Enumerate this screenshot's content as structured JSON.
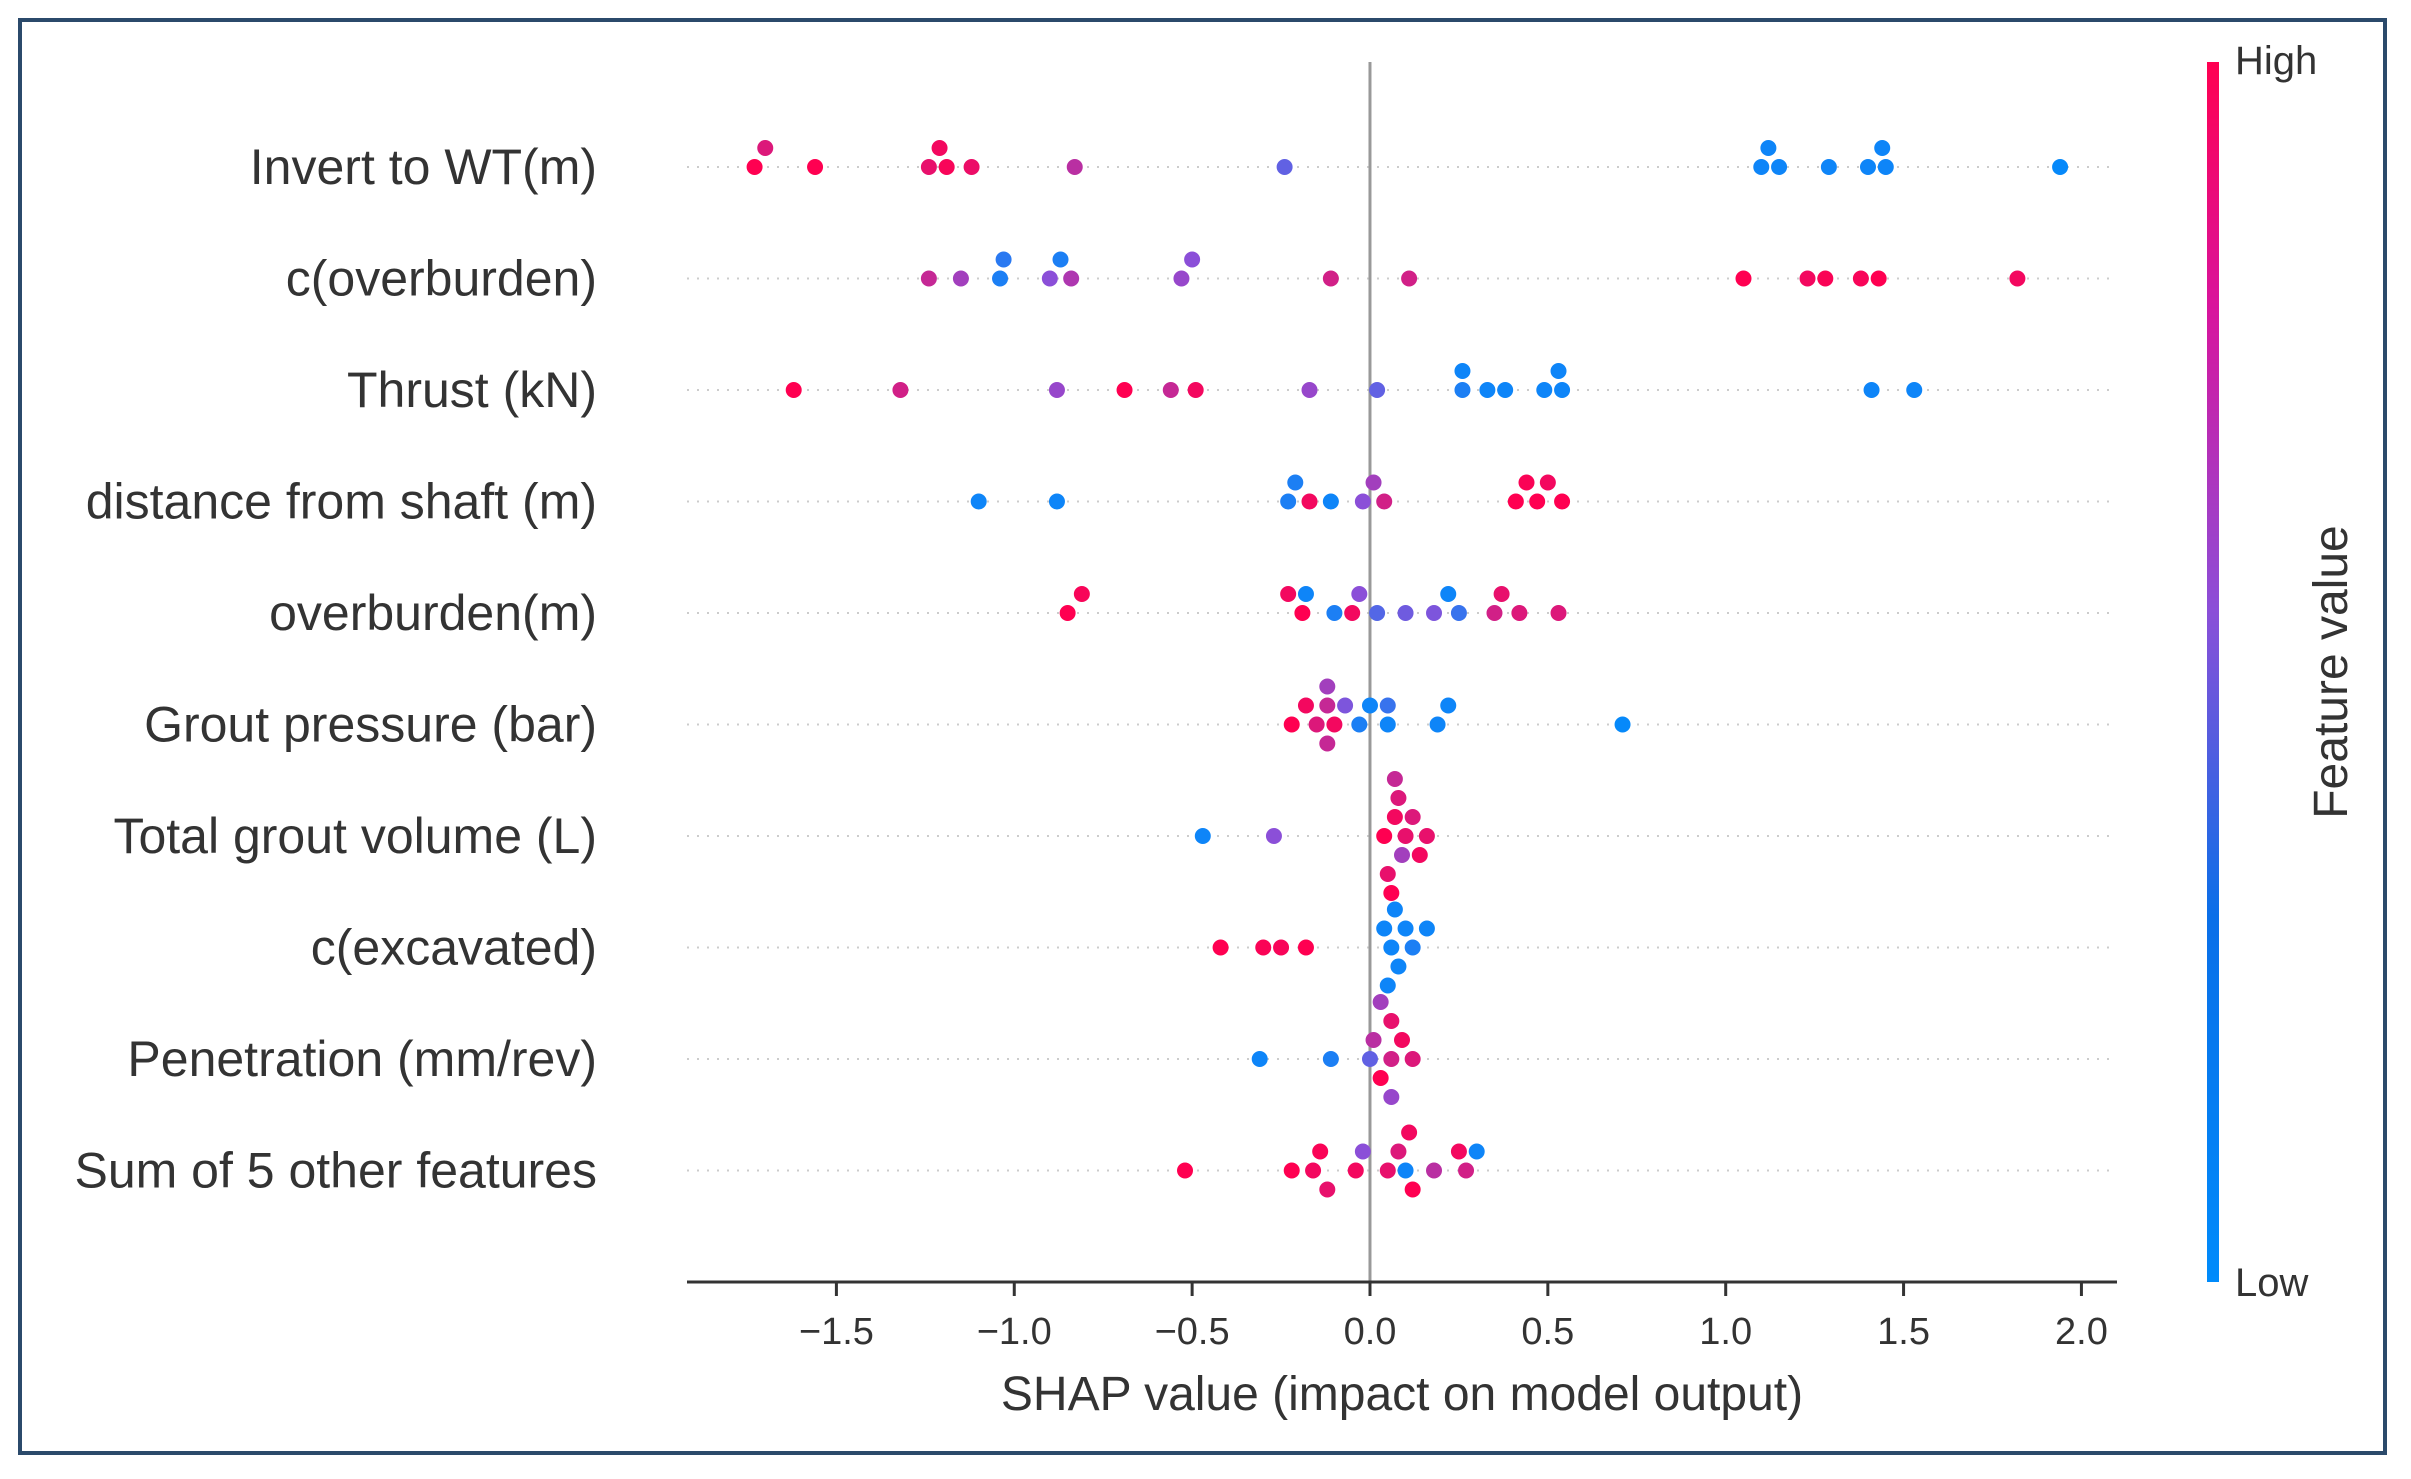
{
  "chart_data": {
    "type": "scatter",
    "subtype": "shap_beeswarm",
    "xlabel": "SHAP value (impact on model output)",
    "ylabel": "",
    "xlim": [
      -1.92,
      2.1
    ],
    "xticks": [
      -1.5,
      -1.0,
      -0.5,
      0.0,
      0.5,
      1.0,
      1.5,
      2.0
    ],
    "xtick_labels": [
      "−1.5",
      "−1.0",
      "−0.5",
      "0.0",
      "0.5",
      "1.0",
      "1.5",
      "2.0"
    ],
    "colorbar": {
      "title": "Feature value",
      "high_label": "High",
      "low_label": "Low",
      "low_color": "#008bfb",
      "mid_color": "#8b4fd8",
      "high_color": "#ff0051"
    },
    "features": [
      {
        "name": "Invert to WT(m)",
        "points": [
          [
            -1.73,
            1
          ],
          [
            -1.7,
            0.85
          ],
          [
            -1.56,
            1
          ],
          [
            -1.24,
            0.9
          ],
          [
            -1.21,
            0.95
          ],
          [
            -1.19,
            0.97
          ],
          [
            -1.12,
            0.92
          ],
          [
            -0.83,
            0.7
          ],
          [
            -0.24,
            0.35
          ],
          [
            1.1,
            0.05
          ],
          [
            1.12,
            0.05
          ],
          [
            1.15,
            0.05
          ],
          [
            1.29,
            0.05
          ],
          [
            1.4,
            0.05
          ],
          [
            1.44,
            0.05
          ],
          [
            1.45,
            0.05
          ],
          [
            1.94,
            0.02
          ]
        ]
      },
      {
        "name": "c(overburden)",
        "points": [
          [
            -1.24,
            0.75
          ],
          [
            -1.15,
            0.6
          ],
          [
            -1.04,
            0.1
          ],
          [
            -1.03,
            0.15
          ],
          [
            -0.9,
            0.5
          ],
          [
            -0.87,
            0.1
          ],
          [
            -0.84,
            0.65
          ],
          [
            -0.53,
            0.55
          ],
          [
            -0.5,
            0.5
          ],
          [
            -0.11,
            0.8
          ],
          [
            0.11,
            0.8
          ],
          [
            1.05,
            1
          ],
          [
            1.23,
            0.95
          ],
          [
            1.28,
            0.98
          ],
          [
            1.38,
            0.97
          ],
          [
            1.43,
            1
          ],
          [
            1.82,
            0.95
          ]
        ]
      },
      {
        "name": "Thrust (kN)",
        "points": [
          [
            -1.62,
            1
          ],
          [
            -1.32,
            0.8
          ],
          [
            -0.88,
            0.55
          ],
          [
            -0.69,
            1
          ],
          [
            -0.56,
            0.75
          ],
          [
            -0.49,
            0.95
          ],
          [
            -0.17,
            0.55
          ],
          [
            0.02,
            0.35
          ],
          [
            0.26,
            0.1
          ],
          [
            0.26,
            0.05
          ],
          [
            0.33,
            0.05
          ],
          [
            0.38,
            0.05
          ],
          [
            0.49,
            0.05
          ],
          [
            0.53,
            0.05
          ],
          [
            0.54,
            0.05
          ],
          [
            1.41,
            0.05
          ],
          [
            1.53,
            0.05
          ]
        ]
      },
      {
        "name": "distance from shaft (m)",
        "points": [
          [
            -1.1,
            0.05
          ],
          [
            -0.88,
            0.05
          ],
          [
            -0.23,
            0.1
          ],
          [
            -0.21,
            0.1
          ],
          [
            -0.17,
            0.95
          ],
          [
            -0.11,
            0.05
          ],
          [
            -0.02,
            0.5
          ],
          [
            0.01,
            0.6
          ],
          [
            0.04,
            0.8
          ],
          [
            0.41,
            1
          ],
          [
            0.44,
            0.98
          ],
          [
            0.47,
            1
          ],
          [
            0.5,
            0.95
          ],
          [
            0.54,
            1
          ]
        ]
      },
      {
        "name": "overburden(m)",
        "points": [
          [
            -0.85,
            1
          ],
          [
            -0.81,
            0.97
          ],
          [
            -0.19,
            1
          ],
          [
            -0.23,
            0.95
          ],
          [
            -0.18,
            0.05
          ],
          [
            -0.1,
            0.1
          ],
          [
            -0.05,
            0.95
          ],
          [
            -0.03,
            0.5
          ],
          [
            0.02,
            0.3
          ],
          [
            0.1,
            0.4
          ],
          [
            0.18,
            0.45
          ],
          [
            0.22,
            0.05
          ],
          [
            0.25,
            0.2
          ],
          [
            0.35,
            0.8
          ],
          [
            0.37,
            0.9
          ],
          [
            0.42,
            0.85
          ],
          [
            0.53,
            0.85
          ]
        ]
      },
      {
        "name": "Grout pressure (bar)",
        "points": [
          [
            -0.22,
            1
          ],
          [
            -0.18,
            0.95
          ],
          [
            -0.15,
            0.85
          ],
          [
            -0.12,
            0.75
          ],
          [
            -0.1,
            0.95
          ],
          [
            -0.07,
            0.45
          ],
          [
            -0.03,
            0.1
          ],
          [
            0.0,
            0.05
          ],
          [
            0.05,
            0.05
          ],
          [
            0.05,
            0.2
          ],
          [
            -0.12,
            0.75
          ],
          [
            -0.12,
            0.6
          ],
          [
            0.19,
            0.05
          ],
          [
            0.22,
            0.05
          ],
          [
            0.71,
            0.02
          ]
        ]
      },
      {
        "name": "Total grout volume (L)",
        "points": [
          [
            -0.47,
            0.05
          ],
          [
            -0.27,
            0.5
          ],
          [
            0.04,
            1
          ],
          [
            0.07,
            0.95
          ],
          [
            0.1,
            0.9
          ],
          [
            0.12,
            0.85
          ],
          [
            0.09,
            0.6
          ],
          [
            0.08,
            0.85
          ],
          [
            0.05,
            0.9
          ],
          [
            0.07,
            0.75
          ],
          [
            0.16,
            0.9
          ],
          [
            0.14,
            0.95
          ],
          [
            0.06,
            1
          ]
        ]
      },
      {
        "name": "c(excavated)",
        "points": [
          [
            -0.42,
            1
          ],
          [
            -0.3,
            0.98
          ],
          [
            -0.25,
            0.97
          ],
          [
            -0.18,
            1
          ],
          [
            0.06,
            0.05
          ],
          [
            0.1,
            0.05
          ],
          [
            0.04,
            0.05
          ],
          [
            0.08,
            0.05
          ],
          [
            0.12,
            0.1
          ],
          [
            0.16,
            0.05
          ],
          [
            0.07,
            0.05
          ],
          [
            0.05,
            0.05
          ]
        ]
      },
      {
        "name": "Penetration (mm/rev)",
        "points": [
          [
            -0.31,
            0.05
          ],
          [
            -0.11,
            0.1
          ],
          [
            0.0,
            0.35
          ],
          [
            0.01,
            0.7
          ],
          [
            0.03,
            1
          ],
          [
            0.06,
            0.8
          ],
          [
            0.09,
            0.95
          ],
          [
            0.12,
            0.85
          ],
          [
            0.06,
            0.9
          ],
          [
            0.06,
            0.55
          ],
          [
            0.03,
            0.6
          ]
        ]
      },
      {
        "name": "Sum of 5 other features",
        "points": [
          [
            -0.52,
            1
          ],
          [
            -0.22,
            1
          ],
          [
            -0.16,
            0.95
          ],
          [
            -0.14,
            0.98
          ],
          [
            -0.12,
            0.9
          ],
          [
            -0.04,
            0.95
          ],
          [
            -0.02,
            0.5
          ],
          [
            0.05,
            0.9
          ],
          [
            0.08,
            0.85
          ],
          [
            0.1,
            0.05
          ],
          [
            0.12,
            1
          ],
          [
            0.11,
            0.95
          ],
          [
            0.18,
            0.7
          ],
          [
            0.27,
            0.8
          ],
          [
            0.3,
            0.05
          ],
          [
            0.25,
            0.95
          ]
        ]
      }
    ]
  }
}
